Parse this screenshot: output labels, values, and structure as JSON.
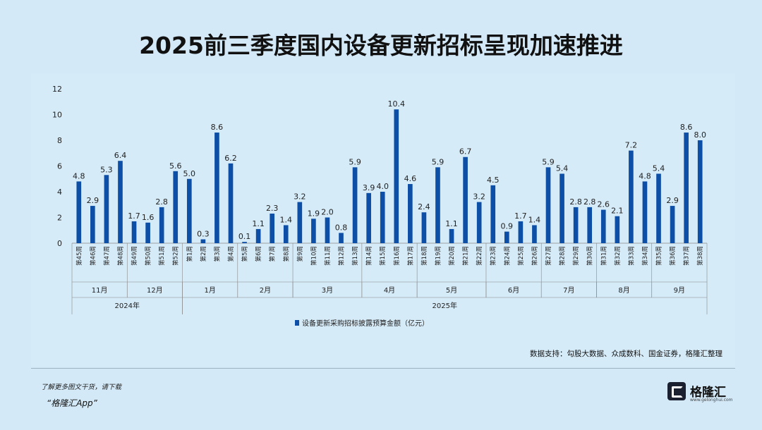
{
  "title": "2025前三季度国内设备更新招标呈现加速推进",
  "chart_data": {
    "type": "bar",
    "ylim": [
      0,
      12
    ],
    "yticks": [
      0,
      2,
      4,
      6,
      8,
      10,
      12
    ],
    "grid": false,
    "legend_position": "bottom",
    "series": [
      {
        "name": "设备更新采购招标披露预算金额（亿元）",
        "color": "#0d4fa6",
        "labels": [
          "4.8",
          "2.9",
          "5.3",
          "6.4",
          "1.7",
          "1.6",
          "2.8",
          "5.6",
          "5.0",
          "0.3",
          "8.6",
          "6.2",
          "0.1",
          "1.1",
          "2.3",
          "1.4",
          "3.2",
          "1.9",
          "2.0",
          "0.8",
          "5.9",
          "3.9",
          "4.0",
          "10.4",
          "4.6",
          "2.4",
          "5.9",
          "1.1",
          "6.7",
          "3.2",
          "4.5",
          "0.9",
          "1.7",
          "1.4",
          "5.9",
          "5.4",
          "2.8",
          "2.8",
          "2.6",
          "2.1",
          "7.2",
          "4.8",
          "5.4",
          "2.9",
          "8.6",
          "8.0"
        ],
        "values": [
          4.8,
          2.9,
          5.3,
          6.4,
          1.7,
          1.6,
          2.8,
          5.6,
          5.0,
          0.3,
          8.6,
          6.2,
          0.1,
          1.1,
          2.3,
          1.4,
          3.2,
          1.9,
          2.0,
          0.8,
          5.9,
          3.9,
          4.0,
          10.4,
          4.6,
          2.4,
          5.9,
          1.1,
          6.7,
          3.2,
          4.5,
          0.9,
          1.7,
          1.4,
          5.9,
          5.4,
          2.8,
          2.8,
          2.6,
          2.1,
          7.2,
          4.8,
          5.4,
          2.9,
          8.6,
          8.0
        ]
      }
    ],
    "categories": [
      "第45周",
      "第46周",
      "第47周",
      "第48周",
      "第49周",
      "第50周",
      "第51周",
      "第52周",
      "第1周",
      "第2周",
      "第3周",
      "第4周",
      "第5周",
      "第6周",
      "第7周",
      "第8周",
      "第9周",
      "第10周",
      "第11周",
      "第12周",
      "第13周",
      "第14周",
      "第15周",
      "第16周",
      "第17周",
      "第18周",
      "第19周",
      "第20周",
      "第21周",
      "第22周",
      "第23周",
      "第24周",
      "第25周",
      "第26周",
      "第27周",
      "第28周",
      "第29周",
      "第30周",
      "第31周",
      "第32周",
      "第33周",
      "第34周",
      "第35周",
      "第36周",
      "第37周",
      "第38周"
    ],
    "months": [
      {
        "label": "11月",
        "start": 0,
        "end": 3
      },
      {
        "label": "12月",
        "start": 4,
        "end": 7
      },
      {
        "label": "1月",
        "start": 8,
        "end": 11
      },
      {
        "label": "2月",
        "start": 12,
        "end": 15
      },
      {
        "label": "3月",
        "start": 16,
        "end": 20
      },
      {
        "label": "4月",
        "start": 21,
        "end": 24
      },
      {
        "label": "5月",
        "start": 25,
        "end": 29
      },
      {
        "label": "6月",
        "start": 30,
        "end": 33
      },
      {
        "label": "7月",
        "start": 34,
        "end": 37
      },
      {
        "label": "8月",
        "start": 38,
        "end": 41
      },
      {
        "label": "9月",
        "start": 42,
        "end": 45
      }
    ],
    "years": [
      {
        "label": "2024年",
        "start": 0,
        "end": 7
      },
      {
        "label": "2025年",
        "start": 8,
        "end": 45
      }
    ]
  },
  "source": "数据支持：勾股大数据、众成数科、国金证券，格隆汇整理",
  "footer": {
    "line1": "了解更多图文干货，请下载",
    "line2": "“格隆汇App”"
  },
  "brand": {
    "name": "格隆汇",
    "url": "www.gelonghui.com"
  }
}
